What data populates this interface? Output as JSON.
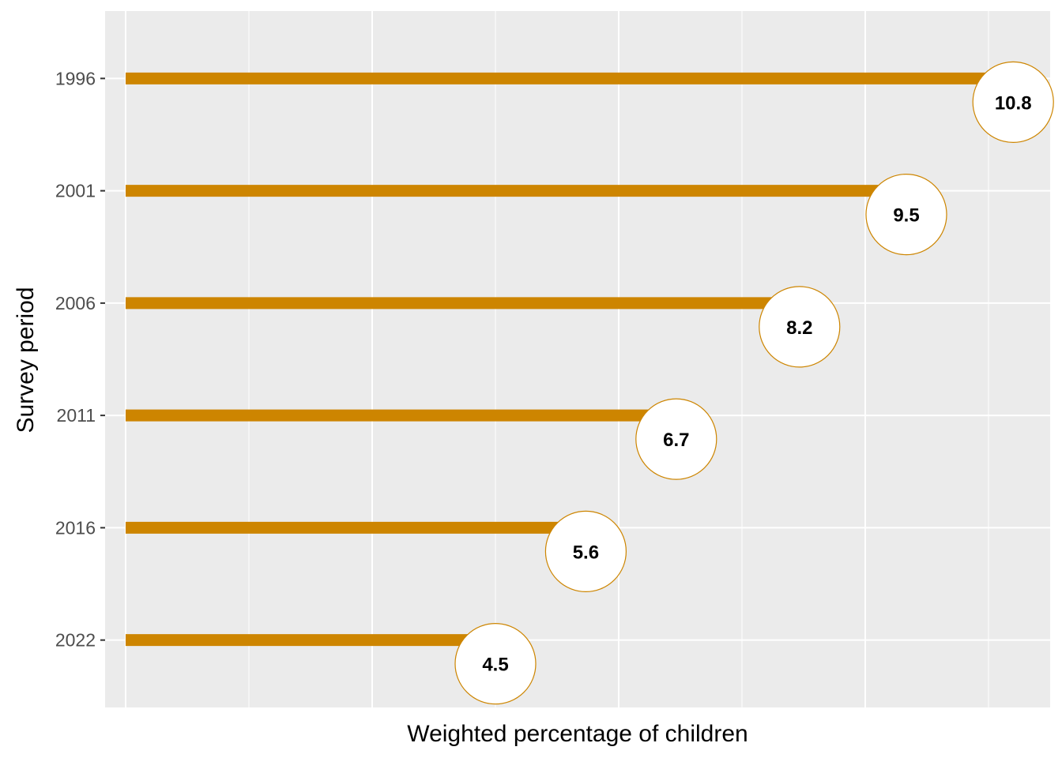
{
  "chart_data": {
    "type": "lollipop",
    "title": "",
    "xlabel": "Weighted percentage of children",
    "ylabel": "Survey period",
    "categories": [
      "1996",
      "2001",
      "2006",
      "2011",
      "2016",
      "2022"
    ],
    "values": [
      10.8,
      9.5,
      8.2,
      6.7,
      5.6,
      4.5
    ],
    "data_labels": [
      "10.8",
      "9.5",
      "8.2",
      "6.7",
      "5.6",
      "4.5"
    ],
    "xlim": [
      -0.25,
      11.25
    ],
    "x_major_ticks": [
      0,
      3,
      6,
      9
    ],
    "x_tick_labels_shown": false,
    "grid": true,
    "legend": "none",
    "colors": {
      "panel_background": "#ebebeb",
      "gridline": "#ffffff",
      "segment": "#cd8500",
      "marker_fill": "#ffffff",
      "marker_stroke": "#cd8500",
      "tick_text": "#4d4d4d",
      "axis_title": "#000000",
      "data_label": "#000000"
    }
  }
}
